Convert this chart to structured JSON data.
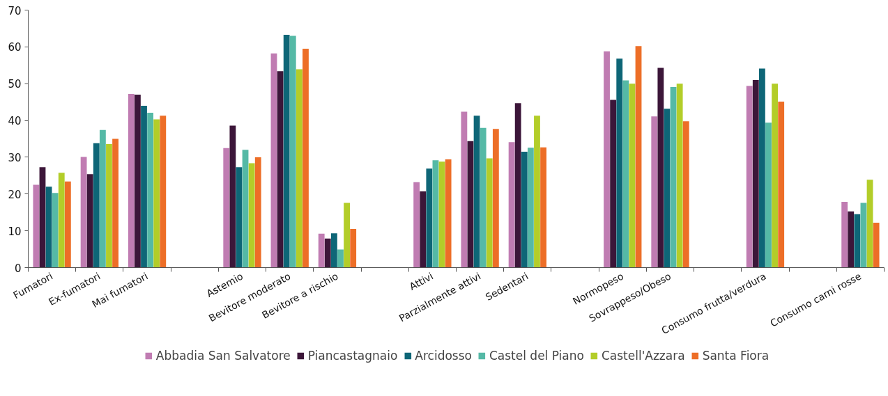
{
  "chart_data": {
    "type": "bar",
    "categories": [
      "Fumatori",
      "Ex-fumatori",
      "Mai fumatori",
      null,
      "Astemio",
      "Bevitore moderato",
      "Bevitore a rischio",
      null,
      "Attivi",
      "Parzialmente attivi",
      "Sedentari",
      null,
      "Normopeso",
      "Sovrappeso/Obeso",
      null,
      "Consumo frutta/verdura",
      null,
      "Consumo carni rosse"
    ],
    "series": [
      {
        "name": "Abbadia San Salvatore",
        "color": "#c07cb2",
        "values": [
          22.5,
          30.1,
          47.2,
          null,
          32.5,
          58.2,
          9.2,
          null,
          23.2,
          42.4,
          34.1,
          null,
          58.8,
          41.1,
          null,
          49.4,
          null,
          17.9
        ]
      },
      {
        "name": "Piancastagnaio",
        "color": "#3c1639",
        "values": [
          27.3,
          25.4,
          47.0,
          null,
          38.6,
          53.4,
          7.9,
          null,
          20.7,
          34.4,
          44.7,
          null,
          45.6,
          54.3,
          null,
          51.0,
          null,
          15.3
        ]
      },
      {
        "name": "Arcidosso",
        "color": "#0e6677",
        "values": [
          22.0,
          33.8,
          44.0,
          null,
          27.3,
          63.3,
          9.3,
          null,
          26.9,
          41.3,
          31.5,
          null,
          56.8,
          43.2,
          null,
          54.1,
          null,
          14.5
        ]
      },
      {
        "name": "Castel del Piano",
        "color": "#55b9a6",
        "values": [
          20.3,
          37.4,
          42.1,
          null,
          32.0,
          63.0,
          4.9,
          null,
          29.2,
          38.0,
          32.6,
          null,
          50.9,
          49.1,
          null,
          39.4,
          null,
          17.6
        ]
      },
      {
        "name": "Castell'Azzara",
        "color": "#b3cd29",
        "values": [
          25.8,
          33.6,
          40.3,
          null,
          28.4,
          53.9,
          17.6,
          null,
          28.8,
          29.7,
          41.3,
          null,
          50.0,
          50.0,
          null,
          50.0,
          null,
          23.9
        ]
      },
      {
        "name": "Santa Fiora",
        "color": "#ed6e27",
        "values": [
          23.4,
          35.0,
          41.3,
          null,
          30.0,
          59.5,
          10.5,
          null,
          29.4,
          37.7,
          32.7,
          null,
          60.2,
          39.8,
          null,
          45.1,
          null,
          12.2
        ]
      }
    ],
    "ylim": [
      0,
      70
    ],
    "yticks": [
      0,
      10,
      20,
      30,
      40,
      50,
      60,
      70
    ],
    "grid": false,
    "legend": "bottom"
  }
}
